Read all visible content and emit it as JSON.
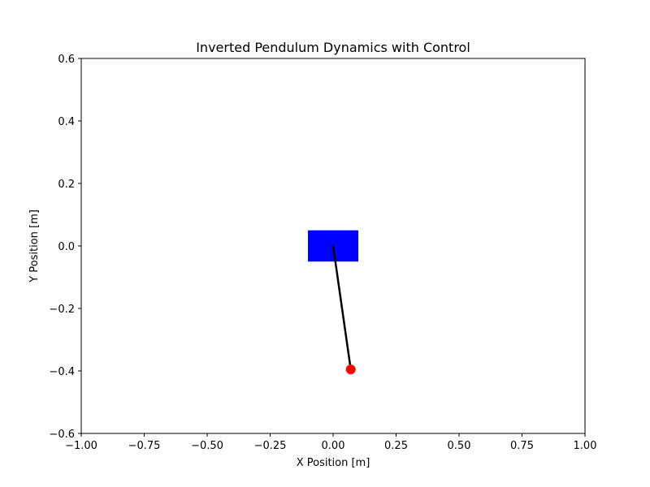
{
  "chart_data": {
    "type": "scatter",
    "title": "Inverted Pendulum Dynamics with Control",
    "xlabel": "X Position [m]",
    "ylabel": "Y Position [m]",
    "xlim": [
      -1.0,
      1.0
    ],
    "ylim": [
      -0.6,
      0.6
    ],
    "grid": false,
    "x_ticks": [
      -1.0,
      -0.75,
      -0.5,
      -0.25,
      0.0,
      0.25,
      0.5,
      0.75,
      1.0
    ],
    "x_tick_labels": [
      "−1.00",
      "−0.75",
      "−0.50",
      "−0.25",
      "0.00",
      "0.25",
      "0.50",
      "0.75",
      "1.00"
    ],
    "y_ticks": [
      -0.6,
      -0.4,
      -0.2,
      0.0,
      0.2,
      0.4,
      0.6
    ],
    "y_tick_labels": [
      "−0.6",
      "−0.4",
      "−0.2",
      "0.0",
      "0.2",
      "0.4",
      "0.6"
    ],
    "cart": {
      "x_min": -0.1,
      "x_max": 0.1,
      "y_min": -0.05,
      "y_max": 0.05,
      "color": "#0000ff"
    },
    "rod": {
      "x": [
        0.0,
        0.07
      ],
      "y": [
        0.0,
        -0.395
      ],
      "color": "#000000"
    },
    "bob": {
      "x": 0.07,
      "y": -0.395,
      "color": "#ff0000"
    }
  }
}
